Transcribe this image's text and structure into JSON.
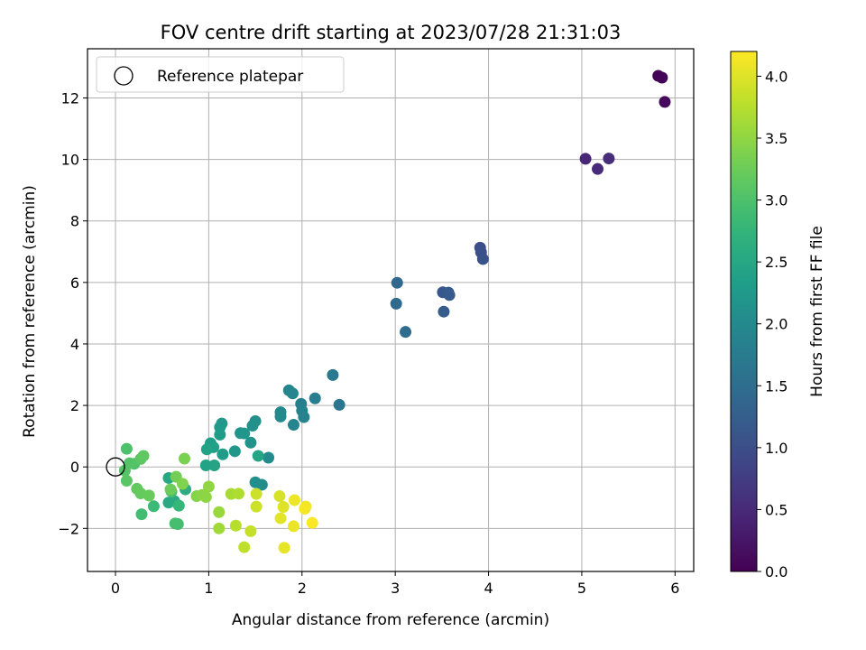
{
  "chart_data": {
    "type": "scatter",
    "title": "FOV centre drift starting at 2023/07/28 21:31:03",
    "xlabel": "Angular distance from reference (arcmin)",
    "ylabel": "Rotation from reference (arcmin)",
    "xlim": [
      -0.3,
      6.2
    ],
    "ylim": [
      -3.4,
      13.6
    ],
    "xticks": [
      0,
      1,
      2,
      3,
      4,
      5,
      6
    ],
    "yticks": [
      -2,
      0,
      2,
      4,
      6,
      8,
      10,
      12
    ],
    "xtick_labels": [
      "0",
      "1",
      "2",
      "3",
      "4",
      "5",
      "6"
    ],
    "ytick_labels": [
      "−2",
      "0",
      "2",
      "4",
      "6",
      "8",
      "10",
      "12"
    ],
    "grid": true,
    "legend": {
      "position": "top-left",
      "label": "Reference platepar"
    },
    "reference_point": {
      "x": 0,
      "y": 0
    },
    "colorbar": {
      "label": "Hours from first FF file",
      "range": [
        0.0,
        4.2
      ],
      "ticks": [
        0.0,
        0.5,
        1.0,
        1.5,
        2.0,
        2.5,
        3.0,
        3.5,
        4.0
      ],
      "tick_labels": [
        "0.0",
        "0.5",
        "1.0",
        "1.5",
        "2.0",
        "2.5",
        "3.0",
        "3.5",
        "4.0"
      ],
      "colormap": "viridis"
    },
    "points": [
      {
        "x": 5.82,
        "y": 12.72,
        "c": 0.0
      },
      {
        "x": 5.86,
        "y": 12.66,
        "c": 0.04
      },
      {
        "x": 5.89,
        "y": 11.87,
        "c": 0.08
      },
      {
        "x": 5.04,
        "y": 10.02,
        "c": 0.45
      },
      {
        "x": 5.17,
        "y": 9.69,
        "c": 0.5
      },
      {
        "x": 5.29,
        "y": 10.03,
        "c": 0.55
      },
      {
        "x": 3.91,
        "y": 7.13,
        "c": 1.0
      },
      {
        "x": 3.92,
        "y": 6.98,
        "c": 1.03
      },
      {
        "x": 3.94,
        "y": 6.76,
        "c": 1.06
      },
      {
        "x": 3.51,
        "y": 5.68,
        "c": 1.15
      },
      {
        "x": 3.57,
        "y": 5.67,
        "c": 1.18
      },
      {
        "x": 3.58,
        "y": 5.59,
        "c": 1.2
      },
      {
        "x": 3.52,
        "y": 5.05,
        "c": 1.22
      },
      {
        "x": 3.02,
        "y": 5.99,
        "c": 1.4
      },
      {
        "x": 3.01,
        "y": 5.31,
        "c": 1.43
      },
      {
        "x": 3.11,
        "y": 4.39,
        "c": 1.47
      },
      {
        "x": 2.4,
        "y": 2.02,
        "c": 1.65
      },
      {
        "x": 2.33,
        "y": 2.99,
        "c": 1.7
      },
      {
        "x": 2.14,
        "y": 2.23,
        "c": 1.78
      },
      {
        "x": 1.99,
        "y": 2.05,
        "c": 1.82
      },
      {
        "x": 2.0,
        "y": 1.83,
        "c": 1.85
      },
      {
        "x": 2.02,
        "y": 1.62,
        "c": 1.88
      },
      {
        "x": 1.91,
        "y": 1.37,
        "c": 1.9
      },
      {
        "x": 1.86,
        "y": 2.49,
        "c": 1.92
      },
      {
        "x": 1.9,
        "y": 2.39,
        "c": 1.95
      },
      {
        "x": 1.77,
        "y": 1.78,
        "c": 1.98
      },
      {
        "x": 1.77,
        "y": 1.64,
        "c": 2.0
      },
      {
        "x": 1.64,
        "y": 0.3,
        "c": 2.02
      },
      {
        "x": 1.57,
        "y": -0.58,
        "c": 2.05
      },
      {
        "x": 1.5,
        "y": -0.5,
        "c": 2.08
      },
      {
        "x": 1.5,
        "y": 1.49,
        "c": 2.1
      },
      {
        "x": 1.47,
        "y": 1.34,
        "c": 2.12
      },
      {
        "x": 1.45,
        "y": 0.79,
        "c": 2.15
      },
      {
        "x": 1.34,
        "y": 1.1,
        "c": 2.18
      },
      {
        "x": 1.38,
        "y": 1.09,
        "c": 2.2
      },
      {
        "x": 1.28,
        "y": 0.51,
        "c": 2.22
      },
      {
        "x": 1.14,
        "y": 1.41,
        "c": 2.25
      },
      {
        "x": 1.12,
        "y": 1.29,
        "c": 2.27
      },
      {
        "x": 1.12,
        "y": 1.05,
        "c": 2.3
      },
      {
        "x": 1.15,
        "y": 0.41,
        "c": 2.32
      },
      {
        "x": 1.02,
        "y": 0.77,
        "c": 2.35
      },
      {
        "x": 1.05,
        "y": 0.64,
        "c": 2.37
      },
      {
        "x": 0.98,
        "y": 0.57,
        "c": 2.4
      },
      {
        "x": 0.97,
        "y": 0.05,
        "c": 2.42
      },
      {
        "x": 1.06,
        "y": 0.05,
        "c": 2.45
      },
      {
        "x": 1.53,
        "y": 0.36,
        "c": 2.47
      },
      {
        "x": 0.57,
        "y": -0.36,
        "c": 2.5
      },
      {
        "x": 0.57,
        "y": -1.16,
        "c": 2.52
      },
      {
        "x": 0.63,
        "y": -1.11,
        "c": 2.55
      },
      {
        "x": 0.75,
        "y": -0.73,
        "c": 2.6
      },
      {
        "x": 0.68,
        "y": -1.26,
        "c": 2.8
      },
      {
        "x": 0.41,
        "y": -1.28,
        "c": 2.85
      },
      {
        "x": 0.28,
        "y": -1.54,
        "c": 2.9
      },
      {
        "x": 0.67,
        "y": -1.86,
        "c": 2.92
      },
      {
        "x": 0.64,
        "y": -1.84,
        "c": 2.95
      },
      {
        "x": 0.6,
        "y": -0.8,
        "c": 2.97
      },
      {
        "x": 0.12,
        "y": 0.59,
        "c": 3.0
      },
      {
        "x": 0.2,
        "y": 0.1,
        "c": 3.02
      },
      {
        "x": 0.15,
        "y": 0.12,
        "c": 3.05
      },
      {
        "x": 0.1,
        "y": -0.12,
        "c": 3.07
      },
      {
        "x": 0.12,
        "y": -0.45,
        "c": 3.1
      },
      {
        "x": 0.27,
        "y": 0.26,
        "c": 3.12
      },
      {
        "x": 0.3,
        "y": 0.36,
        "c": 3.15
      },
      {
        "x": 0.23,
        "y": -0.71,
        "c": 3.18
      },
      {
        "x": 0.27,
        "y": -0.86,
        "c": 3.2
      },
      {
        "x": 0.36,
        "y": -0.93,
        "c": 3.22
      },
      {
        "x": 0.59,
        "y": -0.73,
        "c": 3.25
      },
      {
        "x": 0.65,
        "y": -0.32,
        "c": 3.3
      },
      {
        "x": 0.74,
        "y": 0.27,
        "c": 3.35
      },
      {
        "x": 0.72,
        "y": -0.55,
        "c": 3.4
      },
      {
        "x": 0.87,
        "y": -0.95,
        "c": 3.42
      },
      {
        "x": 0.93,
        "y": -0.91,
        "c": 3.45
      },
      {
        "x": 0.97,
        "y": -0.98,
        "c": 3.48
      },
      {
        "x": 1.0,
        "y": -0.64,
        "c": 3.5
      },
      {
        "x": 1.11,
        "y": -1.47,
        "c": 3.55
      },
      {
        "x": 1.11,
        "y": -2.0,
        "c": 3.6
      },
      {
        "x": 1.24,
        "y": -0.88,
        "c": 3.65
      },
      {
        "x": 1.32,
        "y": -0.87,
        "c": 3.7
      },
      {
        "x": 1.29,
        "y": -1.91,
        "c": 3.75
      },
      {
        "x": 1.38,
        "y": -2.61,
        "c": 3.8
      },
      {
        "x": 1.45,
        "y": -2.09,
        "c": 3.85
      },
      {
        "x": 1.51,
        "y": -1.29,
        "c": 3.88
      },
      {
        "x": 1.51,
        "y": -0.88,
        "c": 3.9
      },
      {
        "x": 1.76,
        "y": -0.95,
        "c": 3.95
      },
      {
        "x": 1.8,
        "y": -1.3,
        "c": 4.0
      },
      {
        "x": 1.77,
        "y": -1.67,
        "c": 4.02
      },
      {
        "x": 1.81,
        "y": -2.63,
        "c": 4.05
      },
      {
        "x": 1.91,
        "y": -1.93,
        "c": 4.08
      },
      {
        "x": 1.92,
        "y": -1.08,
        "c": 4.1
      },
      {
        "x": 2.04,
        "y": -1.29,
        "c": 4.12
      },
      {
        "x": 2.03,
        "y": -1.36,
        "c": 4.15
      },
      {
        "x": 2.11,
        "y": -1.82,
        "c": 4.18
      }
    ]
  }
}
